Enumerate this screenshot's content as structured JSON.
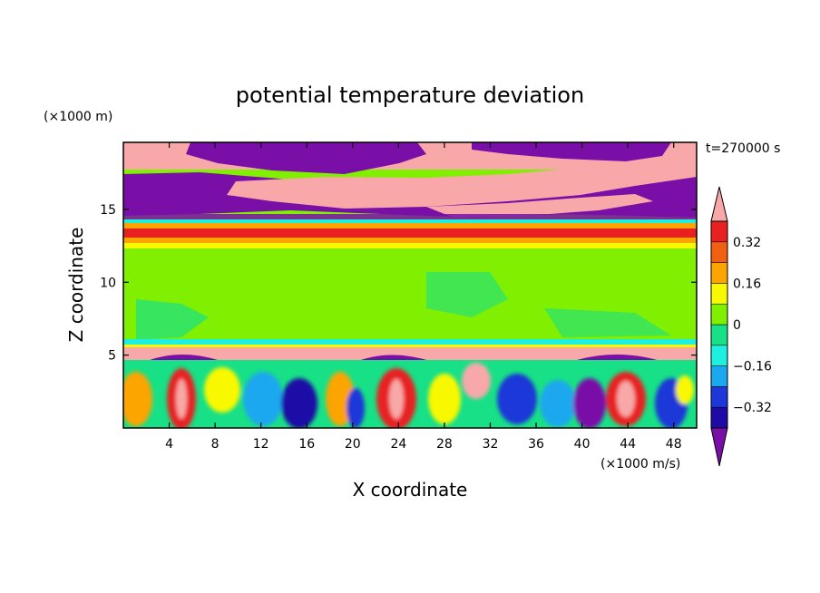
{
  "chart_data": {
    "type": "heatmap",
    "title": "potential temperature deviation",
    "xlabel": "X coordinate",
    "ylabel": "Z coordinate",
    "x_unit": "(×1000 m/s)",
    "y_unit": "(×1000 m)",
    "time_label": "t=270000 s",
    "xlim": [
      0,
      50
    ],
    "ylim": [
      0,
      19.6
    ],
    "x_ticks": [
      4,
      8,
      12,
      16,
      20,
      24,
      28,
      32,
      36,
      40,
      44,
      48
    ],
    "y_ticks": [
      5,
      10,
      15
    ],
    "colorbar": {
      "levels": [
        -0.4,
        -0.32,
        -0.24,
        -0.16,
        -0.08,
        0,
        0.08,
        0.16,
        0.24,
        0.32,
        0.4
      ],
      "tick_labels": [
        "0.32",
        "0.16",
        "0",
        "−0.16",
        "−0.32"
      ],
      "tick_values": [
        0.32,
        0.16,
        0,
        -0.16,
        -0.32
      ],
      "colors": [
        "#7a0fa8",
        "#1f0aa6",
        "#1c38d8",
        "#1ba8ee",
        "#1ef0e0",
        "#18e086",
        "#80f000",
        "#f8f800",
        "#fca400",
        "#f06010",
        "#e82020",
        "#f8a8a8"
      ],
      "extend": "both"
    },
    "regions": [
      {
        "z_range": [
          17.5,
          19.6
        ],
        "value": "mix of +0.4 and -0.4 bands"
      },
      {
        "z_range": [
          14.5,
          17.5
        ],
        "value": "mixed, -0.4 dominant with +0.4 patches"
      },
      {
        "z_range": [
          13.5,
          14.5
        ],
        "value": "0.32 (red band)"
      },
      {
        "z_range": [
          6,
          13.5
        ],
        "value": "0 to 0.08 (green)"
      },
      {
        "z_range": [
          5.3,
          5.8
        ],
        "value": "+0.4 (pink layer)"
      },
      {
        "z_range": [
          0,
          5.3
        ],
        "value": "turbulent, -0.4 to +0.4"
      }
    ]
  }
}
